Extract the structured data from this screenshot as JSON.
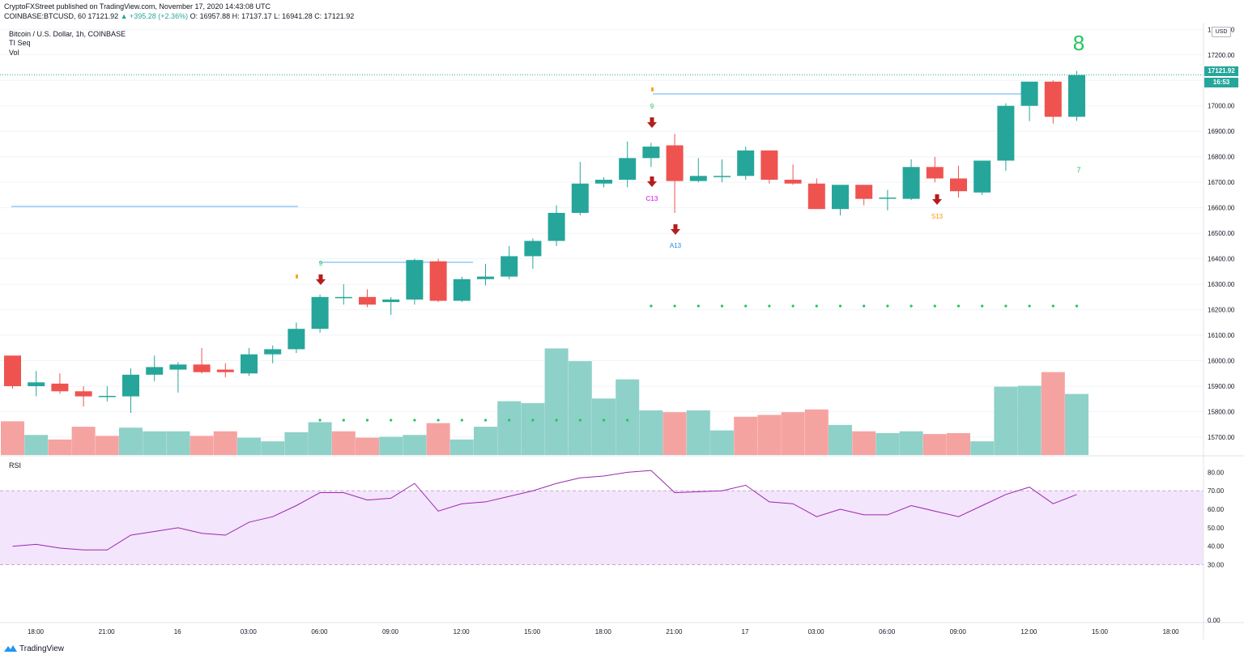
{
  "header": {
    "published": "CryptoFXStreet published on TradingView.com, November 17, 2020 14:43:08 UTC",
    "symbol": "COINBASE:BTCUSD, 60",
    "last": "17121.92",
    "change": "▲ +395.28 (+2.36%)",
    "ohlc": "O: 16957.88  H: 17137.17  L: 16941.28  C: 17121.92"
  },
  "legend": {
    "title": "Bitcoin / U.S. Dollar, 1h, COINBASE",
    "indicator": "TI Seq",
    "volume": "Vol"
  },
  "rsi_label": "RSI",
  "price_axis": {
    "currency": "USD",
    "last_price_label": "17121.92",
    "countdown_label": "16:53"
  },
  "footer": {
    "brand": "TradingView"
  },
  "colors": {
    "up": "#26a69a",
    "down": "#ef5350",
    "vol_up": "#8ed1c8",
    "vol_down": "#f5a3a1",
    "rsi_line": "#9c27b0",
    "rsi_band": "#f3e5fb",
    "signal_arrow": "#b71c1c",
    "level_line": "#90caf9",
    "seq_green": "#22c55e"
  },
  "chart_data": [
    {
      "type": "candlestick",
      "title": "Bitcoin / U.S. Dollar, 1h, COINBASE",
      "y_axis_side": "right",
      "ylim": [
        15630,
        17320
      ],
      "y_ticks": [
        "17300.00",
        "17200.00",
        "17100.00",
        "17000.00",
        "16900.00",
        "16800.00",
        "16700.00",
        "16600.00",
        "16500.00",
        "16400.00",
        "16300.00",
        "16200.00",
        "16100.00",
        "16000.00",
        "15900.00",
        "15800.00",
        "15700.00"
      ],
      "x_ticks": [
        "18:00",
        "21:00",
        "16",
        "03:00",
        "06:00",
        "09:00",
        "12:00",
        "15:00",
        "18:00",
        "21:00",
        "17",
        "03:00",
        "06:00",
        "09:00",
        "12:00",
        "15:00",
        "18:00"
      ],
      "candles": [
        {
          "o": 16020,
          "h": 16020,
          "l": 15890,
          "c": 15900
        },
        {
          "o": 15900,
          "h": 15960,
          "l": 15860,
          "c": 15915
        },
        {
          "o": 15910,
          "h": 15950,
          "l": 15870,
          "c": 15880
        },
        {
          "o": 15880,
          "h": 15900,
          "l": 15820,
          "c": 15860
        },
        {
          "o": 15858,
          "h": 15900,
          "l": 15840,
          "c": 15862
        },
        {
          "o": 15860,
          "h": 15970,
          "l": 15795,
          "c": 15945
        },
        {
          "o": 15945,
          "h": 16020,
          "l": 15920,
          "c": 15975
        },
        {
          "o": 15965,
          "h": 15995,
          "l": 15875,
          "c": 15985
        },
        {
          "o": 15985,
          "h": 16050,
          "l": 15950,
          "c": 15955
        },
        {
          "o": 15965,
          "h": 15990,
          "l": 15935,
          "c": 15955
        },
        {
          "o": 15950,
          "h": 16050,
          "l": 15940,
          "c": 16025
        },
        {
          "o": 16025,
          "h": 16060,
          "l": 15990,
          "c": 16045
        },
        {
          "o": 16045,
          "h": 16150,
          "l": 16030,
          "c": 16125
        },
        {
          "o": 16125,
          "h": 16260,
          "l": 16110,
          "c": 16250
        },
        {
          "o": 16250,
          "h": 16300,
          "l": 16220,
          "c": 16250
        },
        {
          "o": 16250,
          "h": 16280,
          "l": 16210,
          "c": 16220
        },
        {
          "o": 16230,
          "h": 16250,
          "l": 16180,
          "c": 16240
        },
        {
          "o": 16240,
          "h": 16400,
          "l": 16220,
          "c": 16395
        },
        {
          "o": 16390,
          "h": 16400,
          "l": 16230,
          "c": 16235
        },
        {
          "o": 16235,
          "h": 16330,
          "l": 16230,
          "c": 16320
        },
        {
          "o": 16320,
          "h": 16380,
          "l": 16295,
          "c": 16330
        },
        {
          "o": 16330,
          "h": 16450,
          "l": 16320,
          "c": 16410
        },
        {
          "o": 16410,
          "h": 16480,
          "l": 16360,
          "c": 16470
        },
        {
          "o": 16470,
          "h": 16610,
          "l": 16450,
          "c": 16580
        },
        {
          "o": 16580,
          "h": 16780,
          "l": 16570,
          "c": 16695
        },
        {
          "o": 16695,
          "h": 16720,
          "l": 16680,
          "c": 16710
        },
        {
          "o": 16710,
          "h": 16860,
          "l": 16680,
          "c": 16795
        },
        {
          "o": 16795,
          "h": 16855,
          "l": 16760,
          "c": 16840
        },
        {
          "o": 16845,
          "h": 16890,
          "l": 16580,
          "c": 16705
        },
        {
          "o": 16705,
          "h": 16795,
          "l": 16700,
          "c": 16725
        },
        {
          "o": 16722,
          "h": 16790,
          "l": 16700,
          "c": 16725
        },
        {
          "o": 16725,
          "h": 16840,
          "l": 16710,
          "c": 16825
        },
        {
          "o": 16825,
          "h": 16825,
          "l": 16695,
          "c": 16710
        },
        {
          "o": 16710,
          "h": 16770,
          "l": 16690,
          "c": 16695
        },
        {
          "o": 16695,
          "h": 16715,
          "l": 16595,
          "c": 16595
        },
        {
          "o": 16595,
          "h": 16690,
          "l": 16570,
          "c": 16690
        },
        {
          "o": 16690,
          "h": 16690,
          "l": 16610,
          "c": 16635
        },
        {
          "o": 16638,
          "h": 16670,
          "l": 16590,
          "c": 16640
        },
        {
          "o": 16635,
          "h": 16790,
          "l": 16630,
          "c": 16760
        },
        {
          "o": 16760,
          "h": 16800,
          "l": 16700,
          "c": 16715
        },
        {
          "o": 16715,
          "h": 16765,
          "l": 16640,
          "c": 16665
        },
        {
          "o": 16660,
          "h": 16780,
          "l": 16650,
          "c": 16785
        },
        {
          "o": 16785,
          "h": 17010,
          "l": 16745,
          "c": 17000
        },
        {
          "o": 17000,
          "h": 17095,
          "l": 16940,
          "c": 17095
        },
        {
          "o": 17095,
          "h": 17100,
          "l": 16930,
          "c": 16957
        },
        {
          "o": 16957,
          "h": 17137,
          "l": 16941,
          "c": 17121
        }
      ]
    },
    {
      "type": "bar",
      "title": "Vol",
      "values": [
        37,
        22,
        17,
        31,
        21,
        30,
        26,
        26,
        21,
        26,
        19,
        15,
        25,
        36,
        26,
        19,
        20,
        22,
        35,
        17,
        31,
        59,
        57,
        117,
        103,
        62,
        83,
        49,
        47,
        49,
        27,
        42,
        44,
        47,
        50,
        33,
        26,
        24,
        26,
        23,
        24,
        15,
        75,
        76,
        91,
        67
      ],
      "directions": [
        "d",
        "u",
        "d",
        "d",
        "d",
        "u",
        "u",
        "u",
        "d",
        "d",
        "u",
        "u",
        "u",
        "u",
        "d",
        "d",
        "u",
        "u",
        "d",
        "u",
        "u",
        "u",
        "u",
        "u",
        "u",
        "u",
        "u",
        "u",
        "d",
        "u",
        "u",
        "d",
        "d",
        "d",
        "d",
        "u",
        "d",
        "u",
        "u",
        "d",
        "d",
        "u",
        "u",
        "u",
        "d",
        "u"
      ]
    },
    {
      "type": "line",
      "title": "RSI",
      "ylim": [
        0,
        85
      ],
      "y_ticks": [
        "80.00",
        "70.00",
        "60.00",
        "50.00",
        "40.00",
        "30.00",
        "0.00"
      ],
      "band": [
        30,
        70
      ],
      "values": [
        40,
        41,
        39,
        38,
        38,
        46,
        48,
        50,
        47,
        46,
        53,
        56,
        62,
        69,
        69,
        65,
        66,
        74,
        59,
        63,
        64,
        67,
        70,
        74,
        77,
        78,
        80,
        81,
        69,
        69.5,
        70,
        73,
        64,
        63,
        56,
        60,
        57,
        57,
        62,
        59,
        56,
        62,
        68,
        72,
        63,
        68
      ]
    }
  ],
  "annotations": {
    "seq_labels": [
      {
        "text": "9",
        "color": "green"
      },
      {
        "text": "9",
        "color": "green"
      },
      {
        "text": "C13",
        "color": "magenta"
      },
      {
        "text": "A13",
        "color": "blue"
      },
      {
        "text": "S13",
        "color": "orange"
      },
      {
        "text": "7",
        "color": "green"
      },
      {
        "text": "8",
        "color": "green"
      }
    ]
  }
}
